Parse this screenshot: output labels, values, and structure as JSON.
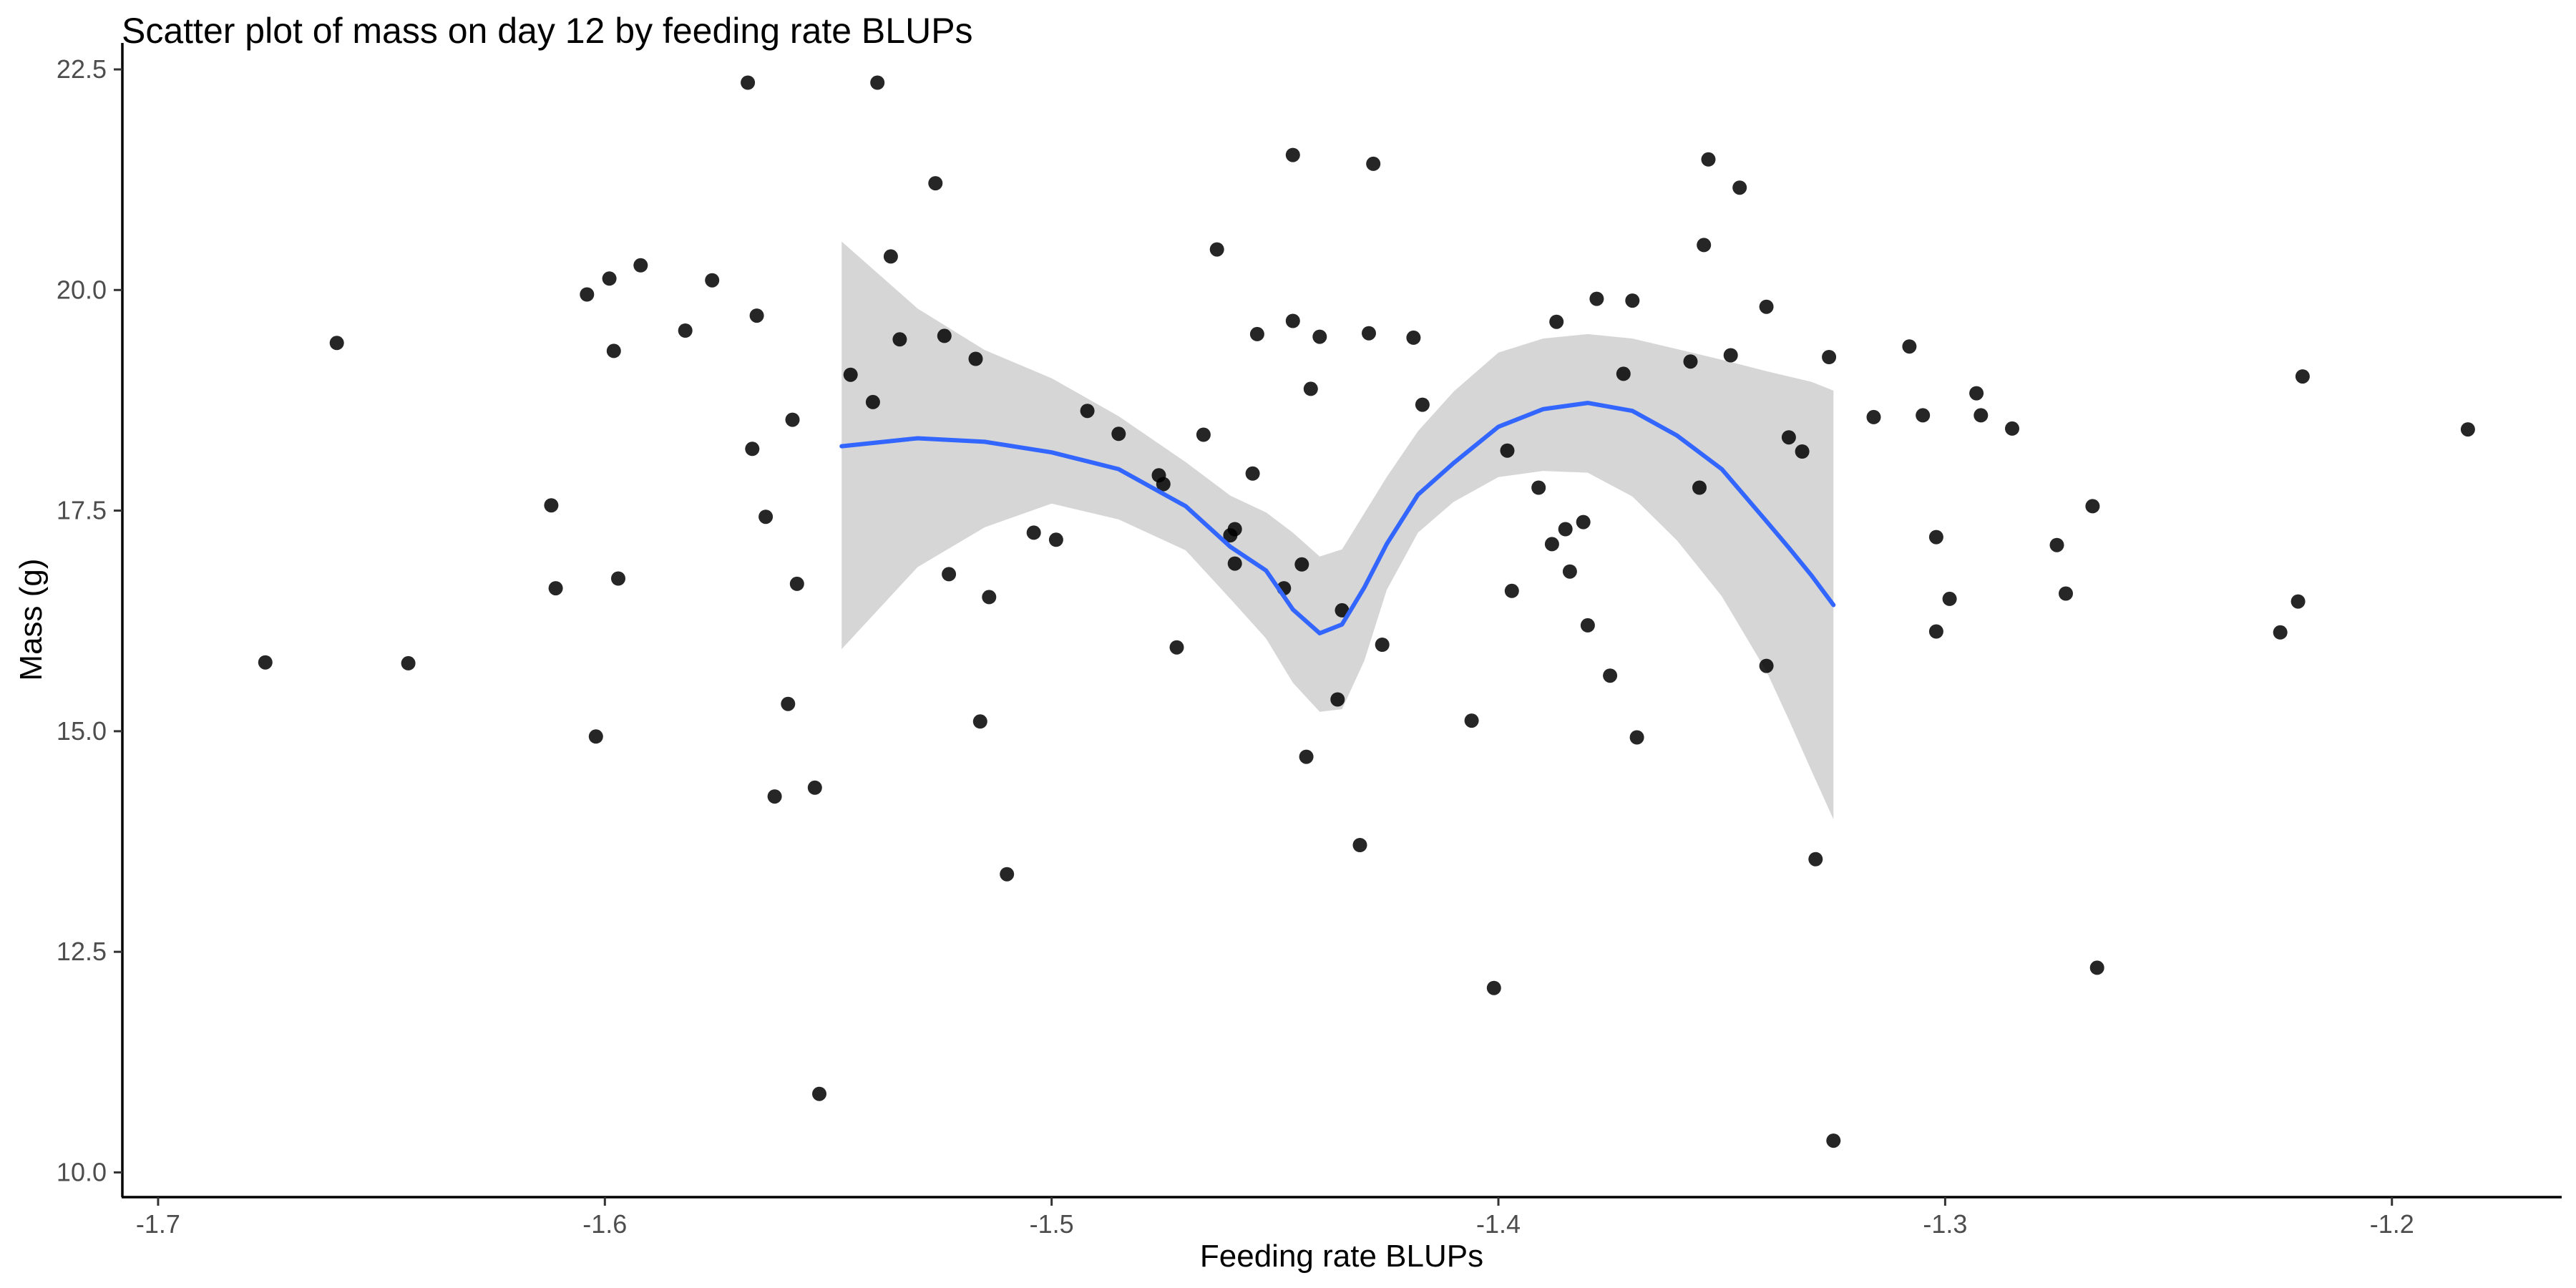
{
  "chart_data": {
    "type": "scatter",
    "title": "Scatter plot of mass on day 12 by feeding rate BLUPs",
    "xlabel": "Feeding rate BLUPs",
    "ylabel": "Mass (g)",
    "xlim": [
      -1.708,
      -1.162
    ],
    "ylim": [
      9.72,
      22.8
    ],
    "x_ticks": [
      -1.7,
      -1.6,
      -1.5,
      -1.4,
      -1.3,
      -1.2
    ],
    "y_ticks": [
      10.0,
      12.5,
      15.0,
      17.5,
      20.0,
      22.5
    ],
    "x_tick_labels": [
      "-1.7",
      "-1.6",
      "-1.5",
      "-1.4",
      "-1.3",
      "-1.2"
    ],
    "y_tick_labels": [
      "10.0",
      "12.5",
      "15.0",
      "17.5",
      "20.0",
      "22.5"
    ],
    "grid": false,
    "legend": "none",
    "colors": {
      "points": "#000000",
      "smooth_line": "#3366FF",
      "confidence_band": "#999999"
    },
    "points": [
      [
        -1.676,
        15.78
      ],
      [
        -1.66,
        19.4
      ],
      [
        -1.644,
        15.77
      ],
      [
        -1.612,
        17.56
      ],
      [
        -1.611,
        16.62
      ],
      [
        -1.604,
        19.95
      ],
      [
        -1.602,
        14.94
      ],
      [
        -1.599,
        20.13
      ],
      [
        -1.598,
        19.31
      ],
      [
        -1.597,
        16.73
      ],
      [
        -1.592,
        20.28
      ],
      [
        -1.582,
        19.54
      ],
      [
        -1.576,
        20.11
      ],
      [
        -1.568,
        22.35
      ],
      [
        -1.567,
        18.2
      ],
      [
        -1.566,
        19.71
      ],
      [
        -1.564,
        17.43
      ],
      [
        -1.562,
        14.26
      ],
      [
        -1.559,
        15.31
      ],
      [
        -1.558,
        18.53
      ],
      [
        -1.557,
        16.67
      ],
      [
        -1.553,
        14.36
      ],
      [
        -1.552,
        10.89
      ],
      [
        -1.545,
        19.04
      ],
      [
        -1.54,
        18.73
      ],
      [
        -1.539,
        22.35
      ],
      [
        -1.536,
        20.38
      ],
      [
        -1.534,
        19.44
      ],
      [
        -1.526,
        21.21
      ],
      [
        -1.524,
        19.48
      ],
      [
        -1.523,
        16.78
      ],
      [
        -1.517,
        19.22
      ],
      [
        -1.516,
        15.11
      ],
      [
        -1.514,
        16.52
      ],
      [
        -1.51,
        13.38
      ],
      [
        -1.504,
        17.25
      ],
      [
        -1.499,
        17.17
      ],
      [
        -1.492,
        18.63
      ],
      [
        -1.485,
        18.37
      ],
      [
        -1.476,
        17.9
      ],
      [
        -1.475,
        17.8
      ],
      [
        -1.472,
        15.95
      ],
      [
        -1.466,
        18.36
      ],
      [
        -1.463,
        20.46
      ],
      [
        -1.46,
        17.22
      ],
      [
        -1.459,
        17.29
      ],
      [
        -1.459,
        16.9
      ],
      [
        -1.455,
        17.92
      ],
      [
        -1.454,
        19.5
      ],
      [
        -1.448,
        16.62
      ],
      [
        -1.446,
        19.65
      ],
      [
        -1.446,
        21.53
      ],
      [
        -1.444,
        16.89
      ],
      [
        -1.443,
        14.71
      ],
      [
        -1.442,
        18.88
      ],
      [
        -1.44,
        19.47
      ],
      [
        -1.436,
        15.36
      ],
      [
        -1.435,
        16.37
      ],
      [
        -1.431,
        13.71
      ],
      [
        -1.429,
        19.51
      ],
      [
        -1.428,
        21.43
      ],
      [
        -1.426,
        15.98
      ],
      [
        -1.419,
        19.46
      ],
      [
        -1.417,
        18.7
      ],
      [
        -1.406,
        15.12
      ],
      [
        -1.401,
        12.09
      ],
      [
        -1.398,
        18.18
      ],
      [
        -1.397,
        16.59
      ],
      [
        -1.391,
        17.76
      ],
      [
        -1.388,
        17.12
      ],
      [
        -1.387,
        19.64
      ],
      [
        -1.385,
        17.29
      ],
      [
        -1.384,
        16.81
      ],
      [
        -1.381,
        17.37
      ],
      [
        -1.38,
        16.2
      ],
      [
        -1.378,
        19.9
      ],
      [
        -1.375,
        15.63
      ],
      [
        -1.372,
        19.05
      ],
      [
        -1.37,
        19.88
      ],
      [
        -1.369,
        14.93
      ],
      [
        -1.357,
        19.19
      ],
      [
        -1.355,
        17.76
      ],
      [
        -1.354,
        20.51
      ],
      [
        -1.353,
        21.48
      ],
      [
        -1.348,
        19.26
      ],
      [
        -1.346,
        21.16
      ],
      [
        -1.34,
        19.81
      ],
      [
        -1.34,
        15.74
      ],
      [
        -1.335,
        18.33
      ],
      [
        -1.332,
        18.17
      ],
      [
        -1.329,
        13.55
      ],
      [
        -1.326,
        19.24
      ],
      [
        -1.325,
        10.36
      ],
      [
        -1.316,
        18.56
      ],
      [
        -1.308,
        19.36
      ],
      [
        -1.305,
        18.58
      ],
      [
        -1.302,
        17.2
      ],
      [
        -1.302,
        16.13
      ],
      [
        -1.299,
        16.5
      ],
      [
        -1.293,
        18.83
      ],
      [
        -1.292,
        18.58
      ],
      [
        -1.285,
        18.43
      ],
      [
        -1.275,
        17.11
      ],
      [
        -1.273,
        16.56
      ],
      [
        -1.267,
        17.55
      ],
      [
        -1.266,
        12.32
      ],
      [
        -1.225,
        16.12
      ],
      [
        -1.221,
        16.47
      ],
      [
        -1.22,
        19.02
      ],
      [
        -1.183,
        18.42
      ]
    ],
    "smooth": {
      "method": "loess",
      "x": [
        -1.547,
        -1.53,
        -1.515,
        -1.5,
        -1.485,
        -1.47,
        -1.46,
        -1.452,
        -1.446,
        -1.44,
        -1.435,
        -1.43,
        -1.425,
        -1.418,
        -1.41,
        -1.4,
        -1.39,
        -1.38,
        -1.37,
        -1.36,
        -1.35,
        -1.34,
        -1.335,
        -1.33,
        -1.325
      ],
      "y": [
        18.23,
        18.32,
        18.28,
        18.16,
        17.97,
        17.55,
        17.09,
        16.82,
        16.38,
        16.11,
        16.21,
        16.63,
        17.12,
        17.68,
        18.04,
        18.45,
        18.65,
        18.72,
        18.63,
        18.35,
        17.97,
        17.38,
        17.08,
        16.77,
        16.43
      ],
      "lower": [
        15.93,
        16.86,
        17.31,
        17.58,
        17.4,
        17.05,
        16.5,
        16.05,
        15.55,
        15.22,
        15.25,
        15.8,
        16.6,
        17.25,
        17.6,
        17.88,
        17.95,
        17.93,
        17.66,
        17.16,
        16.53,
        15.68,
        15.13,
        14.56,
        14.0
      ],
      "upper": [
        20.55,
        19.79,
        19.32,
        19.0,
        18.57,
        18.05,
        17.67,
        17.48,
        17.25,
        16.98,
        17.06,
        17.47,
        17.88,
        18.4,
        18.85,
        19.29,
        19.45,
        19.5,
        19.45,
        19.33,
        19.21,
        19.08,
        19.02,
        18.96,
        18.86
      ]
    }
  }
}
